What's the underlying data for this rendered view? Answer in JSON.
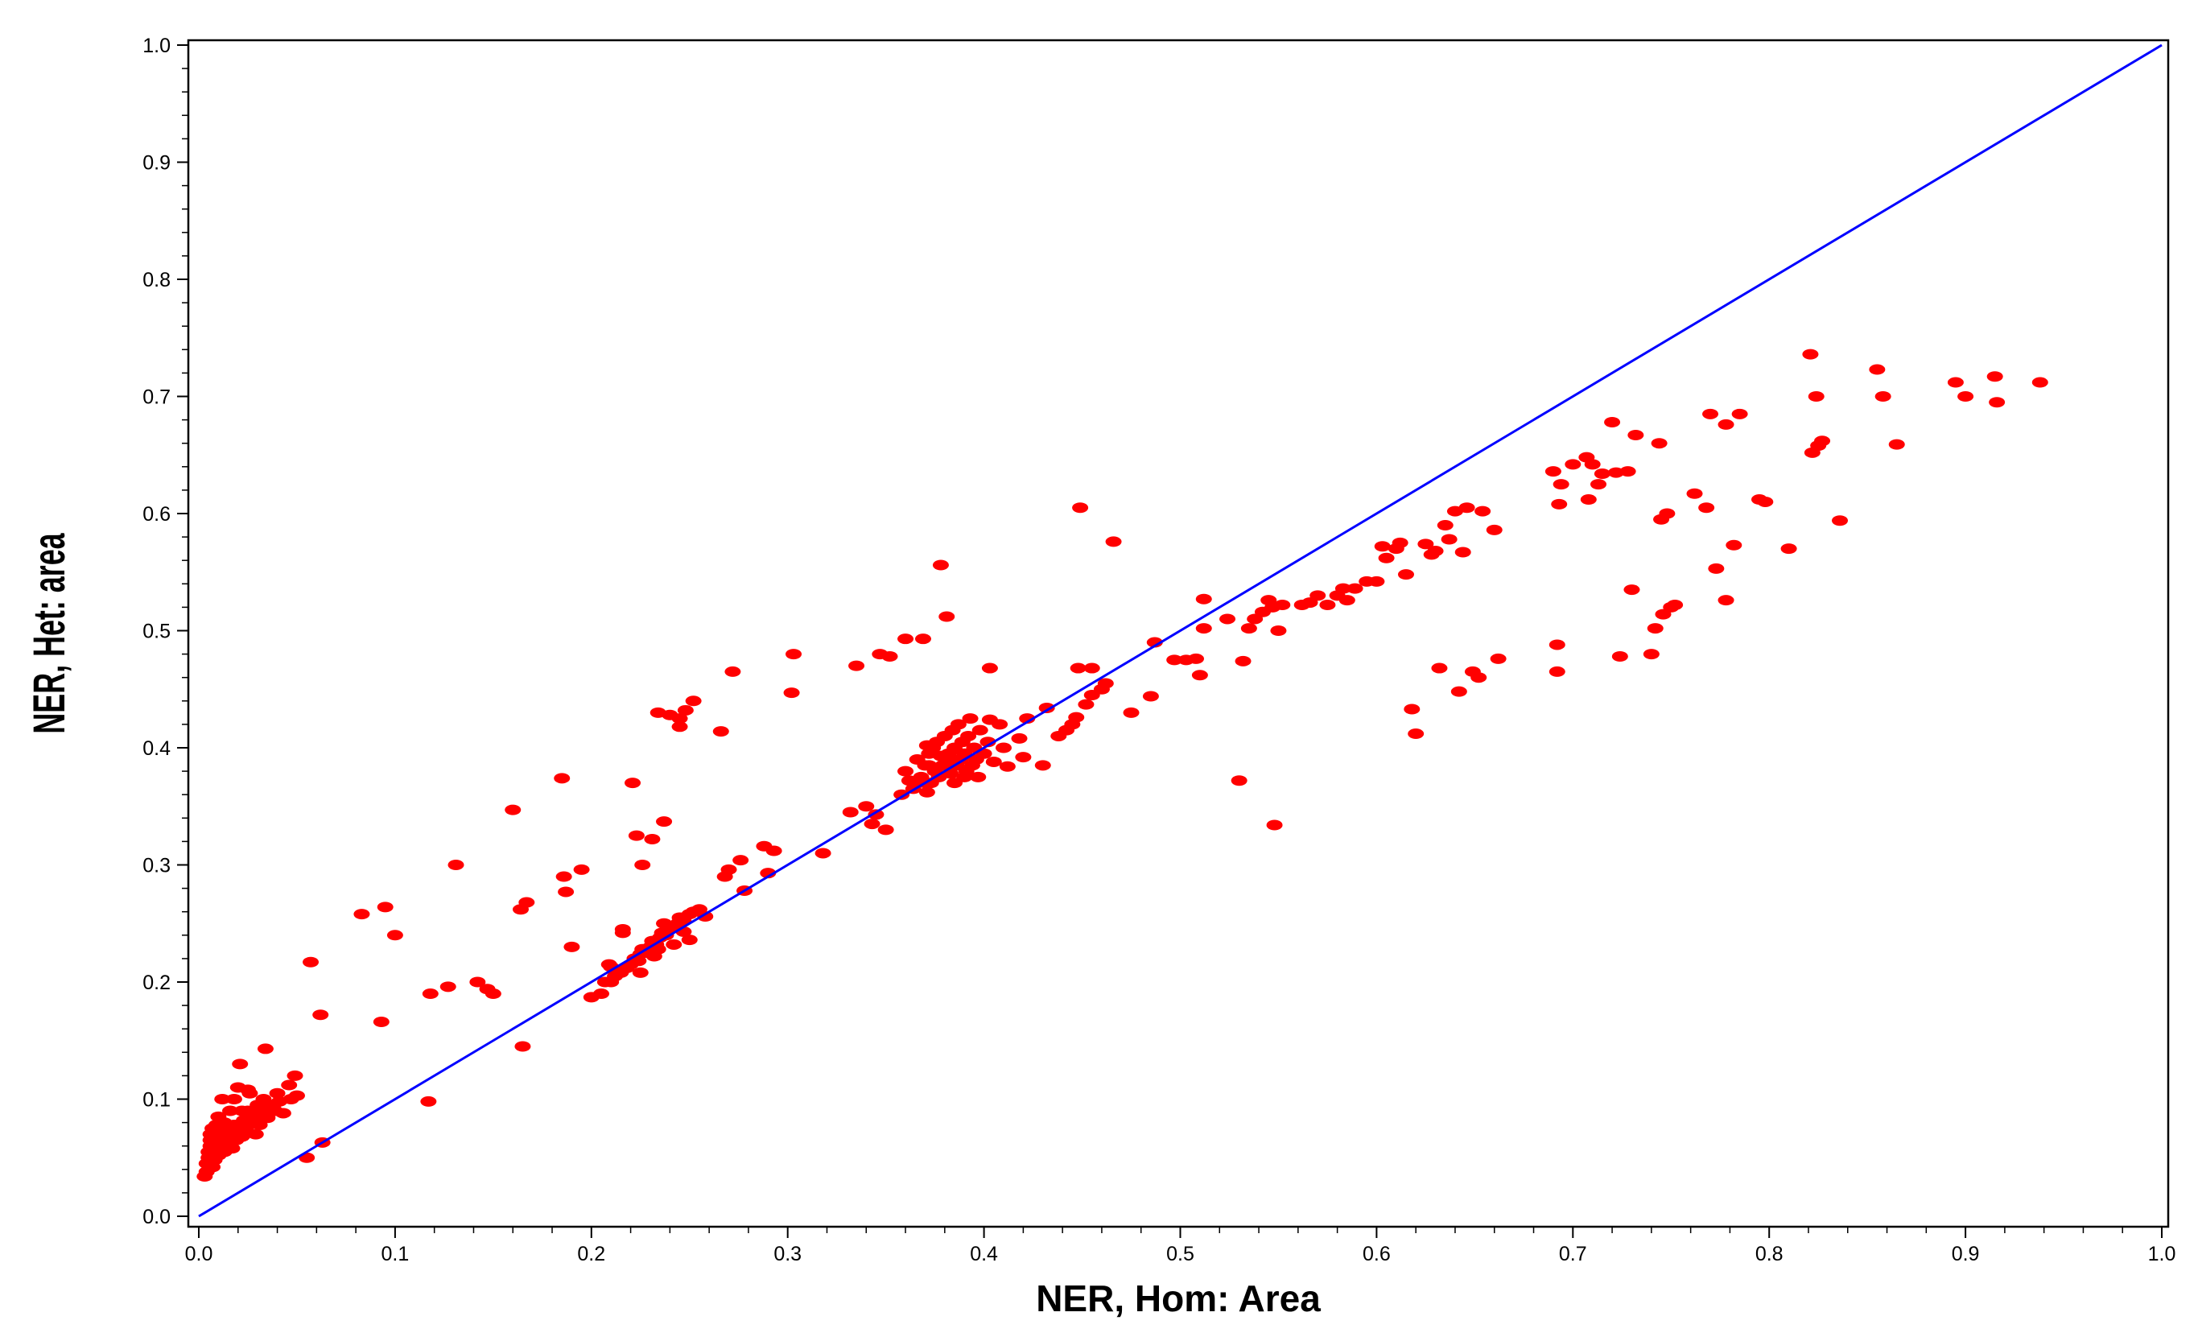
{
  "chart_data": {
    "type": "scatter",
    "title": "",
    "xlabel": "NER, Hom: Area",
    "ylabel": "NER, Het: area",
    "xlim": [
      0.0,
      1.0
    ],
    "ylim": [
      0.0,
      1.0
    ],
    "xticks": [
      "0.0",
      "0.1",
      "0.2",
      "0.3",
      "0.4",
      "0.5",
      "0.6",
      "0.7",
      "0.8",
      "0.9",
      "1.0"
    ],
    "yticks": [
      "0.0",
      "0.1",
      "0.2",
      "0.3",
      "0.4",
      "0.5",
      "0.6",
      "0.7",
      "0.8",
      "0.9",
      "1.0"
    ],
    "grid": false,
    "legend": "none",
    "point_color": "#ff0000",
    "line_color": "#0000ff",
    "reference_line": {
      "x": [
        0.0,
        1.0
      ],
      "y": [
        0.0,
        1.0
      ]
    },
    "points": [
      [
        0.003,
        0.034
      ],
      [
        0.004,
        0.038
      ],
      [
        0.004,
        0.045
      ],
      [
        0.005,
        0.05
      ],
      [
        0.005,
        0.055
      ],
      [
        0.006,
        0.06
      ],
      [
        0.006,
        0.065
      ],
      [
        0.006,
        0.07
      ],
      [
        0.007,
        0.042
      ],
      [
        0.007,
        0.075
      ],
      [
        0.008,
        0.048
      ],
      [
        0.008,
        0.058
      ],
      [
        0.009,
        0.064
      ],
      [
        0.009,
        0.078
      ],
      [
        0.01,
        0.052
      ],
      [
        0.01,
        0.068
      ],
      [
        0.011,
        0.06
      ],
      [
        0.012,
        0.072
      ],
      [
        0.012,
        0.1
      ],
      [
        0.013,
        0.055
      ],
      [
        0.013,
        0.08
      ],
      [
        0.014,
        0.066
      ],
      [
        0.015,
        0.062
      ],
      [
        0.015,
        0.075
      ],
      [
        0.016,
        0.07
      ],
      [
        0.017,
        0.058
      ],
      [
        0.018,
        0.078
      ],
      [
        0.018,
        0.1
      ],
      [
        0.019,
        0.065
      ],
      [
        0.02,
        0.11
      ],
      [
        0.021,
        0.072
      ],
      [
        0.022,
        0.068
      ],
      [
        0.023,
        0.082
      ],
      [
        0.024,
        0.075
      ],
      [
        0.025,
        0.09
      ],
      [
        0.026,
        0.105
      ],
      [
        0.027,
        0.08
      ],
      [
        0.028,
        0.085
      ],
      [
        0.03,
        0.095
      ],
      [
        0.031,
        0.078
      ],
      [
        0.032,
        0.088
      ],
      [
        0.033,
        0.1
      ],
      [
        0.035,
        0.084
      ],
      [
        0.036,
        0.092
      ],
      [
        0.038,
        0.095
      ],
      [
        0.039,
        0.09
      ],
      [
        0.041,
        0.098
      ],
      [
        0.043,
        0.088
      ],
      [
        0.046,
        0.112
      ],
      [
        0.047,
        0.1
      ],
      [
        0.049,
        0.12
      ],
      [
        0.05,
        0.103
      ],
      [
        0.021,
        0.13
      ],
      [
        0.025,
        0.108
      ],
      [
        0.034,
        0.143
      ],
      [
        0.022,
        0.09
      ],
      [
        0.029,
        0.07
      ],
      [
        0.016,
        0.09
      ],
      [
        0.01,
        0.085
      ],
      [
        0.04,
        0.105
      ],
      [
        0.055,
        0.05
      ],
      [
        0.057,
        0.217
      ],
      [
        0.062,
        0.172
      ],
      [
        0.063,
        0.063
      ],
      [
        0.083,
        0.258
      ],
      [
        0.093,
        0.166
      ],
      [
        0.095,
        0.264
      ],
      [
        0.1,
        0.24
      ],
      [
        0.117,
        0.098
      ],
      [
        0.118,
        0.19
      ],
      [
        0.127,
        0.196
      ],
      [
        0.131,
        0.3
      ],
      [
        0.142,
        0.2
      ],
      [
        0.147,
        0.194
      ],
      [
        0.15,
        0.19
      ],
      [
        0.16,
        0.347
      ],
      [
        0.164,
        0.262
      ],
      [
        0.165,
        0.145
      ],
      [
        0.167,
        0.268
      ],
      [
        0.185,
        0.374
      ],
      [
        0.186,
        0.29
      ],
      [
        0.187,
        0.277
      ],
      [
        0.19,
        0.23
      ],
      [
        0.195,
        0.296
      ],
      [
        0.2,
        0.187
      ],
      [
        0.205,
        0.19
      ],
      [
        0.207,
        0.2
      ],
      [
        0.21,
        0.2
      ],
      [
        0.212,
        0.205
      ],
      [
        0.215,
        0.208
      ],
      [
        0.218,
        0.212
      ],
      [
        0.22,
        0.215
      ],
      [
        0.221,
        0.37
      ],
      [
        0.222,
        0.22
      ],
      [
        0.224,
        0.218
      ],
      [
        0.225,
        0.224
      ],
      [
        0.226,
        0.228
      ],
      [
        0.228,
        0.225
      ],
      [
        0.23,
        0.23
      ],
      [
        0.231,
        0.235
      ],
      [
        0.233,
        0.232
      ],
      [
        0.235,
        0.238
      ],
      [
        0.236,
        0.242
      ],
      [
        0.238,
        0.24
      ],
      [
        0.24,
        0.245
      ],
      [
        0.242,
        0.248
      ],
      [
        0.244,
        0.25
      ],
      [
        0.245,
        0.255
      ],
      [
        0.247,
        0.252
      ],
      [
        0.25,
        0.258
      ],
      [
        0.252,
        0.26
      ],
      [
        0.255,
        0.262
      ],
      [
        0.258,
        0.256
      ],
      [
        0.216,
        0.242
      ],
      [
        0.232,
        0.222
      ],
      [
        0.242,
        0.232
      ],
      [
        0.237,
        0.25
      ],
      [
        0.21,
        0.213
      ],
      [
        0.226,
        0.3
      ],
      [
        0.237,
        0.337
      ],
      [
        0.216,
        0.245
      ],
      [
        0.209,
        0.215
      ],
      [
        0.225,
        0.208
      ],
      [
        0.247,
        0.243
      ],
      [
        0.25,
        0.236
      ],
      [
        0.234,
        0.228
      ],
      [
        0.223,
        0.325
      ],
      [
        0.231,
        0.322
      ],
      [
        0.234,
        0.43
      ],
      [
        0.24,
        0.428
      ],
      [
        0.245,
        0.418
      ],
      [
        0.248,
        0.432
      ],
      [
        0.252,
        0.44
      ],
      [
        0.266,
        0.414
      ],
      [
        0.268,
        0.29
      ],
      [
        0.27,
        0.296
      ],
      [
        0.276,
        0.304
      ],
      [
        0.278,
        0.278
      ],
      [
        0.272,
        0.465
      ],
      [
        0.288,
        0.316
      ],
      [
        0.29,
        0.293
      ],
      [
        0.293,
        0.312
      ],
      [
        0.302,
        0.447
      ],
      [
        0.303,
        0.48
      ],
      [
        0.318,
        0.31
      ],
      [
        0.332,
        0.345
      ],
      [
        0.335,
        0.47
      ],
      [
        0.34,
        0.35
      ],
      [
        0.343,
        0.335
      ],
      [
        0.345,
        0.343
      ],
      [
        0.347,
        0.48
      ],
      [
        0.35,
        0.33
      ],
      [
        0.352,
        0.478
      ],
      [
        0.358,
        0.36
      ],
      [
        0.36,
        0.493
      ],
      [
        0.36,
        0.38
      ],
      [
        0.362,
        0.372
      ],
      [
        0.364,
        0.365
      ],
      [
        0.366,
        0.39
      ],
      [
        0.368,
        0.375
      ],
      [
        0.369,
        0.493
      ],
      [
        0.37,
        0.385
      ],
      [
        0.371,
        0.362
      ],
      [
        0.372,
        0.395
      ],
      [
        0.373,
        0.37
      ],
      [
        0.374,
        0.4
      ],
      [
        0.375,
        0.38
      ],
      [
        0.376,
        0.405
      ],
      [
        0.377,
        0.375
      ],
      [
        0.378,
        0.556
      ],
      [
        0.379,
        0.385
      ],
      [
        0.38,
        0.41
      ],
      [
        0.381,
        0.39
      ],
      [
        0.382,
        0.395
      ],
      [
        0.383,
        0.378
      ],
      [
        0.384,
        0.415
      ],
      [
        0.385,
        0.4
      ],
      [
        0.386,
        0.385
      ],
      [
        0.387,
        0.42
      ],
      [
        0.388,
        0.39
      ],
      [
        0.389,
        0.405
      ],
      [
        0.39,
        0.395
      ],
      [
        0.391,
        0.38
      ],
      [
        0.392,
        0.41
      ],
      [
        0.393,
        0.425
      ],
      [
        0.394,
        0.385
      ],
      [
        0.395,
        0.4
      ],
      [
        0.396,
        0.39
      ],
      [
        0.397,
        0.375
      ],
      [
        0.398,
        0.415
      ],
      [
        0.4,
        0.395
      ],
      [
        0.402,
        0.405
      ],
      [
        0.405,
        0.388
      ],
      [
        0.408,
        0.42
      ],
      [
        0.41,
        0.4
      ],
      [
        0.412,
        0.384
      ],
      [
        0.381,
        0.512
      ],
      [
        0.366,
        0.37
      ],
      [
        0.372,
        0.385
      ],
      [
        0.378,
        0.393
      ],
      [
        0.371,
        0.402
      ],
      [
        0.385,
        0.37
      ],
      [
        0.39,
        0.375
      ],
      [
        0.403,
        0.424
      ],
      [
        0.403,
        0.468
      ],
      [
        0.418,
        0.408
      ],
      [
        0.422,
        0.425
      ],
      [
        0.43,
        0.385
      ],
      [
        0.432,
        0.434
      ],
      [
        0.438,
        0.41
      ],
      [
        0.442,
        0.415
      ],
      [
        0.445,
        0.42
      ],
      [
        0.447,
        0.426
      ],
      [
        0.448,
        0.468
      ],
      [
        0.449,
        0.605
      ],
      [
        0.452,
        0.437
      ],
      [
        0.455,
        0.468
      ],
      [
        0.455,
        0.445
      ],
      [
        0.46,
        0.45
      ],
      [
        0.462,
        0.455
      ],
      [
        0.466,
        0.576
      ],
      [
        0.475,
        0.43
      ],
      [
        0.485,
        0.444
      ],
      [
        0.487,
        0.49
      ],
      [
        0.497,
        0.475
      ],
      [
        0.503,
        0.475
      ],
      [
        0.508,
        0.476
      ],
      [
        0.51,
        0.462
      ],
      [
        0.512,
        0.527
      ],
      [
        0.512,
        0.502
      ],
      [
        0.524,
        0.51
      ],
      [
        0.53,
        0.372
      ],
      [
        0.532,
        0.474
      ],
      [
        0.535,
        0.502
      ],
      [
        0.538,
        0.51
      ],
      [
        0.542,
        0.516
      ],
      [
        0.545,
        0.526
      ],
      [
        0.547,
        0.52
      ],
      [
        0.548,
        0.334
      ],
      [
        0.55,
        0.5
      ],
      [
        0.552,
        0.522
      ],
      [
        0.562,
        0.522
      ],
      [
        0.566,
        0.524
      ],
      [
        0.57,
        0.53
      ],
      [
        0.575,
        0.522
      ],
      [
        0.58,
        0.53
      ],
      [
        0.583,
        0.536
      ],
      [
        0.585,
        0.526
      ],
      [
        0.589,
        0.536
      ],
      [
        0.595,
        0.542
      ],
      [
        0.6,
        0.542
      ],
      [
        0.603,
        0.572
      ],
      [
        0.605,
        0.562
      ],
      [
        0.61,
        0.57
      ],
      [
        0.612,
        0.575
      ],
      [
        0.615,
        0.548
      ],
      [
        0.618,
        0.433
      ],
      [
        0.62,
        0.412
      ],
      [
        0.625,
        0.574
      ],
      [
        0.628,
        0.565
      ],
      [
        0.63,
        0.568
      ],
      [
        0.632,
        0.468
      ],
      [
        0.635,
        0.59
      ],
      [
        0.637,
        0.578
      ],
      [
        0.64,
        0.602
      ],
      [
        0.642,
        0.448
      ],
      [
        0.644,
        0.567
      ],
      [
        0.646,
        0.605
      ],
      [
        0.649,
        0.465
      ],
      [
        0.652,
        0.46
      ],
      [
        0.654,
        0.602
      ],
      [
        0.66,
        0.586
      ],
      [
        0.662,
        0.476
      ],
      [
        0.69,
        0.636
      ],
      [
        0.692,
        0.465
      ],
      [
        0.692,
        0.488
      ],
      [
        0.693,
        0.608
      ],
      [
        0.694,
        0.625
      ],
      [
        0.7,
        0.642
      ],
      [
        0.707,
        0.648
      ],
      [
        0.708,
        0.612
      ],
      [
        0.71,
        0.642
      ],
      [
        0.713,
        0.625
      ],
      [
        0.715,
        0.634
      ],
      [
        0.72,
        0.678
      ],
      [
        0.722,
        0.635
      ],
      [
        0.724,
        0.478
      ],
      [
        0.728,
        0.636
      ],
      [
        0.73,
        0.535
      ],
      [
        0.732,
        0.667
      ],
      [
        0.74,
        0.48
      ],
      [
        0.742,
        0.502
      ],
      [
        0.744,
        0.66
      ],
      [
        0.745,
        0.595
      ],
      [
        0.746,
        0.514
      ],
      [
        0.748,
        0.6
      ],
      [
        0.75,
        0.52
      ],
      [
        0.752,
        0.522
      ],
      [
        0.762,
        0.617
      ],
      [
        0.768,
        0.605
      ],
      [
        0.77,
        0.685
      ],
      [
        0.773,
        0.553
      ],
      [
        0.778,
        0.676
      ],
      [
        0.782,
        0.573
      ],
      [
        0.785,
        0.685
      ],
      [
        0.795,
        0.612
      ],
      [
        0.798,
        0.61
      ],
      [
        0.81,
        0.57
      ],
      [
        0.821,
        0.736
      ],
      [
        0.822,
        0.652
      ],
      [
        0.824,
        0.7
      ],
      [
        0.825,
        0.658
      ],
      [
        0.827,
        0.662
      ],
      [
        0.836,
        0.594
      ],
      [
        0.855,
        0.723
      ],
      [
        0.858,
        0.7
      ],
      [
        0.865,
        0.659
      ],
      [
        0.895,
        0.712
      ],
      [
        0.9,
        0.7
      ],
      [
        0.915,
        0.717
      ],
      [
        0.916,
        0.695
      ],
      [
        0.938,
        0.712
      ],
      [
        0.778,
        0.526
      ],
      [
        0.245,
        0.425
      ],
      [
        0.42,
        0.392
      ],
      [
        0.37,
        0.37
      ]
    ]
  }
}
